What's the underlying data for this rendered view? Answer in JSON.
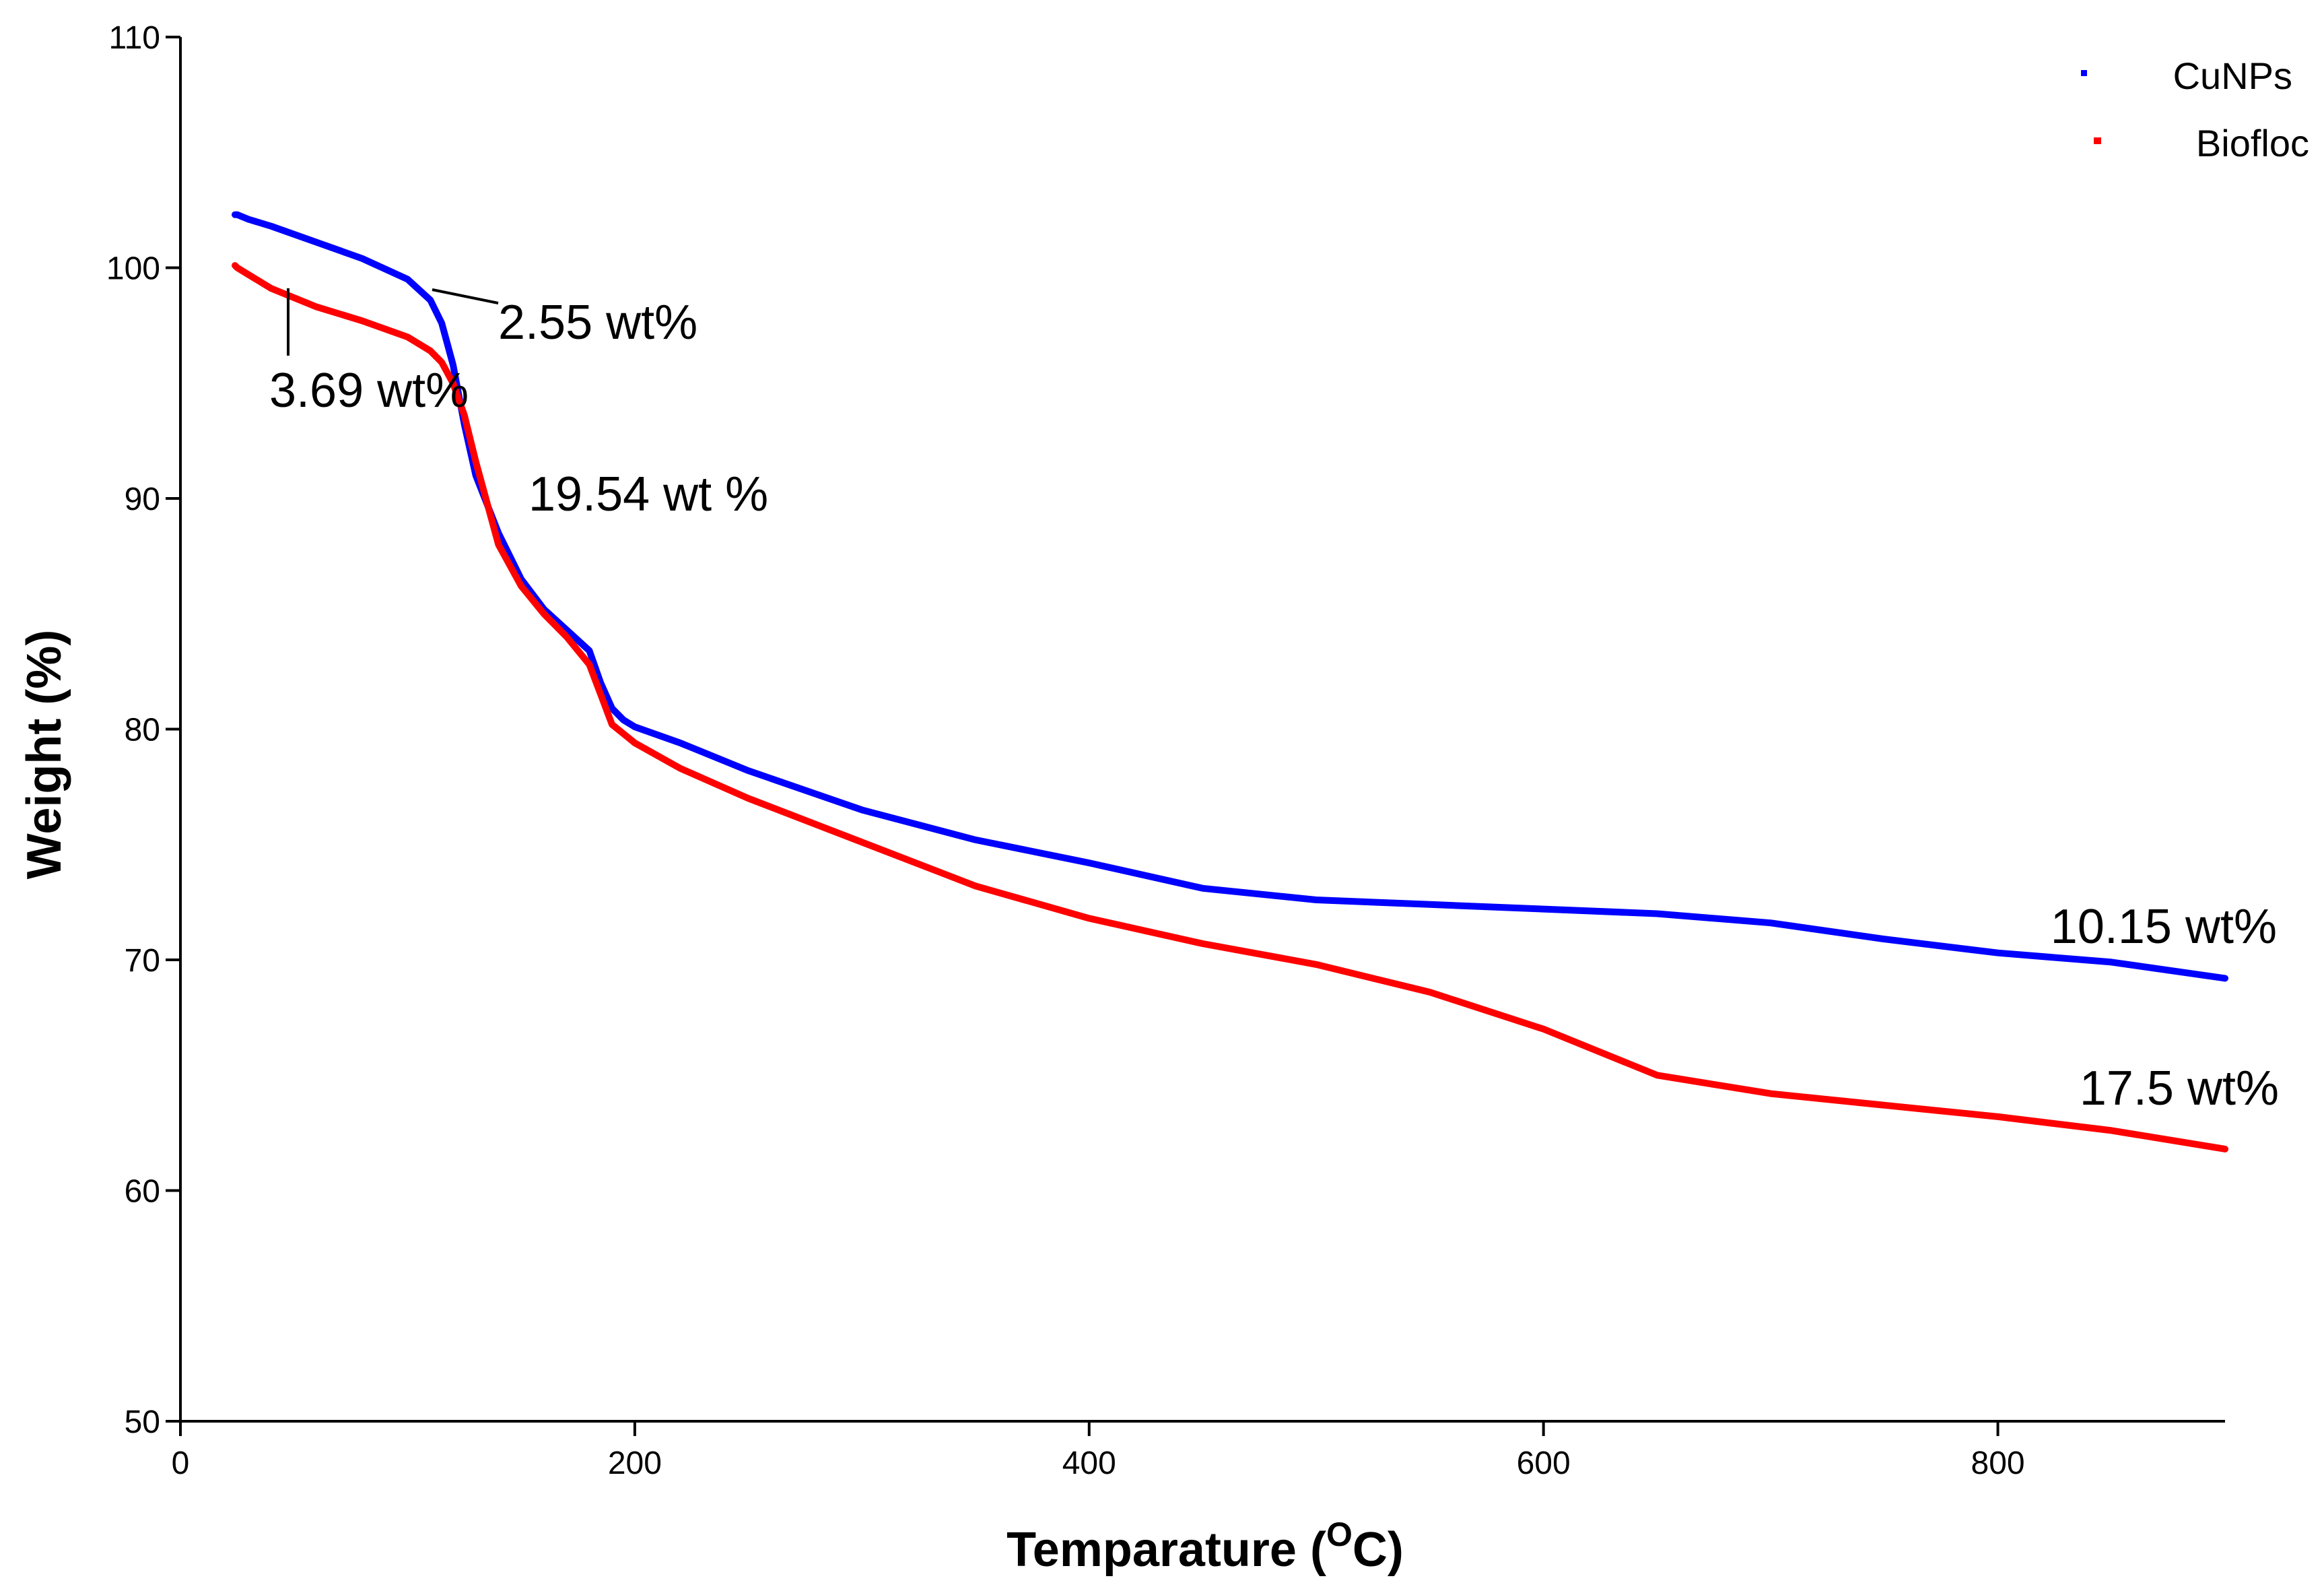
{
  "chart_data": {
    "type": "line",
    "xlabel": "Temparature (",
    "xlabel_sup": "O",
    "xlabel_tail": "C)",
    "ylabel": "Weight (%)",
    "xlim": [
      0,
      900
    ],
    "ylim": [
      50,
      110
    ],
    "xticks": [
      0,
      200,
      400,
      600,
      800
    ],
    "yticks": [
      50,
      60,
      70,
      80,
      90,
      100,
      110
    ],
    "grid": false,
    "legend_position": "top-right",
    "series": [
      {
        "name": "CuNPs",
        "color": "#0000ff",
        "x": [
          24,
          25,
          30,
          40,
          60,
          80,
          100,
          110,
          115,
          120,
          125,
          130,
          140,
          150,
          160,
          170,
          180,
          185,
          190,
          195,
          200,
          220,
          250,
          300,
          350,
          400,
          450,
          500,
          550,
          600,
          650,
          700,
          750,
          800,
          850,
          900
        ],
        "y": [
          102.3,
          102.3,
          102.1,
          101.8,
          101.1,
          100.4,
          99.5,
          98.6,
          97.6,
          95.8,
          93.2,
          91.0,
          88.5,
          86.5,
          85.2,
          84.3,
          83.4,
          82.0,
          80.9,
          80.4,
          80.1,
          79.4,
          78.2,
          76.5,
          75.2,
          74.2,
          73.1,
          72.6,
          72.4,
          72.2,
          72.0,
          71.6,
          70.9,
          70.3,
          69.9,
          69.2
        ]
      },
      {
        "name": "Biofloc",
        "color": "#ff0000",
        "x": [
          24,
          25,
          30,
          40,
          50,
          60,
          80,
          100,
          110,
          115,
          120,
          125,
          130,
          140,
          150,
          160,
          170,
          180,
          185,
          190,
          195,
          200,
          220,
          250,
          300,
          350,
          400,
          450,
          500,
          550,
          600,
          650,
          700,
          750,
          800,
          850,
          900
        ],
        "y": [
          100.1,
          100.0,
          99.7,
          99.1,
          98.7,
          98.3,
          97.7,
          97.0,
          96.4,
          95.9,
          95.0,
          93.6,
          91.6,
          88.0,
          86.2,
          85.0,
          84.0,
          82.8,
          81.5,
          80.2,
          79.8,
          79.4,
          78.3,
          77.0,
          75.1,
          73.2,
          71.8,
          70.7,
          69.8,
          68.6,
          67.0,
          65.0,
          64.2,
          63.7,
          63.2,
          62.6,
          61.8
        ]
      }
    ],
    "annotations": [
      {
        "text": "2.55 wt%"
      },
      {
        "text": "3.69 wt%"
      },
      {
        "text": "19.54 wt %"
      },
      {
        "text": "10.15 wt%"
      },
      {
        "text": "17.5 wt%"
      }
    ]
  }
}
